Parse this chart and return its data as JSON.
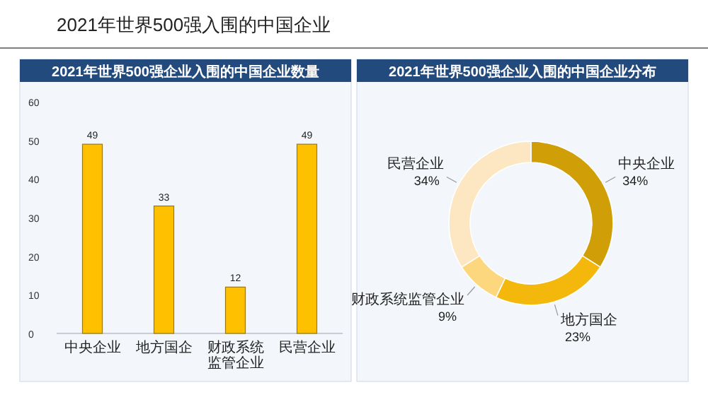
{
  "chart_data": [
    {
      "type": "bar",
      "title": "2021年世界500强企业入围的中国企业数量",
      "annotations": [
        "2021年世界500强入围的中国企业"
      ],
      "categories": [
        "中央企业",
        "地方国企",
        "财政系统监管企业",
        "民营企业"
      ],
      "values": [
        49,
        33,
        12,
        49
      ],
      "color": "#ffc000",
      "ylim": [
        0,
        60
      ],
      "yticks": [
        0,
        10,
        20,
        30,
        40,
        50,
        60
      ],
      "grid": false,
      "data_labels": true
    },
    {
      "type": "donut",
      "title": "2021年世界500强企业入围的中国企业分布",
      "categories": [
        "中央企业",
        "地方国企",
        "财政系统监管企业",
        "民营企业"
      ],
      "values": [
        34,
        23,
        9,
        34
      ],
      "value_labels": [
        "34%",
        "23%",
        "9%",
        "34%"
      ],
      "colors": [
        "#d09e06",
        "#f4b80c",
        "#fcd77e",
        "#fde7c3"
      ]
    }
  ]
}
